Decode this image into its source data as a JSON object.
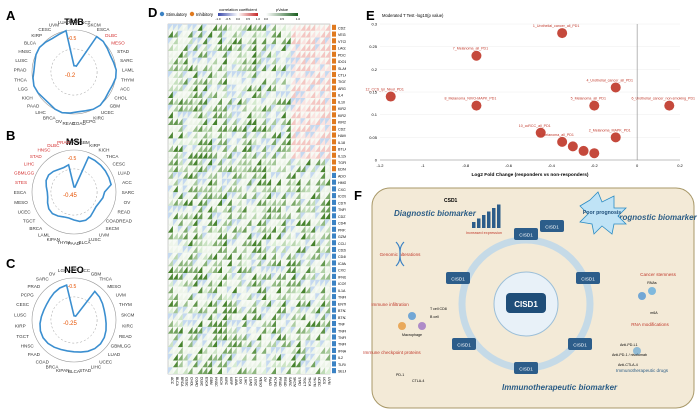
{
  "panels": {
    "A": {
      "label": "A",
      "title": "TMB",
      "center_value": "-0.2",
      "marker_value": "-0.5",
      "highlight_labels": [
        "DLBC",
        "MESO"
      ],
      "cancers": [
        "UCS",
        "TGCT",
        "SKCM",
        "ESCA",
        "DLBC",
        "MESO",
        "STAD",
        "SARC",
        "LAML",
        "THYM",
        "ACC",
        "CHOL",
        "GBM",
        "UCEC",
        "KIRC",
        "PCPG",
        "COAD",
        "READ",
        "OV",
        "BRCA",
        "LIHC",
        "PAAD",
        "KICH",
        "LGG",
        "THCA",
        "PRAD",
        "LUSC",
        "HNSC",
        "BLCA",
        "KIRP",
        "CESC",
        "UVM",
        "LUAD"
      ]
    },
    "B": {
      "label": "B",
      "title": "MSI",
      "center_value": "-0.45",
      "marker_value": "-0.5",
      "highlight_labels": [
        "PRAD",
        "DLBC",
        "HNSC",
        "STAD",
        "LIHC",
        "GBMLGG",
        "STES"
      ],
      "cancers": [
        "UCS",
        "GBM",
        "KIRP",
        "KICH",
        "THCA",
        "CESC",
        "LUAD",
        "ACC",
        "SARC",
        "OV",
        "READ",
        "COADREAD",
        "SKCM",
        "UVM",
        "LUSC",
        "BLCA",
        "PAAD",
        "THYM",
        "KIPAN",
        "LAML",
        "BRCA",
        "TGCT",
        "UCEC",
        "MESO",
        "ESCA",
        "STES",
        "GBMLGG",
        "LIHC",
        "STAD",
        "HNSC",
        "DLBC",
        "PRAD"
      ]
    },
    "C": {
      "label": "C",
      "title": "NEO",
      "center_value": "-0.25",
      "marker_value": "-0.5",
      "highlight_labels": [],
      "cancers": [
        "UCS",
        "ACC",
        "GBM",
        "THCA",
        "MESO",
        "UVM",
        "THYM",
        "SKCM",
        "KIRC",
        "READ",
        "GBMLGG",
        "LUAD",
        "UCEC",
        "LIHC",
        "STAD",
        "BLCA",
        "KIPAN",
        "BRCA",
        "COAD",
        "PAAD",
        "HNSC",
        "TGCT",
        "KIRP",
        "LUSC",
        "CESC",
        "PCPG",
        "PRAD",
        "SARC",
        "OV",
        "LGG"
      ]
    },
    "D": {
      "label": "D",
      "legend_stim": "Stimulatory",
      "legend_inhib": "Inhibitory",
      "legend_corr": "correlation coefficient",
      "legend_p": "pValue",
      "corr_ticks": [
        "-1.0",
        "-0.5",
        "0.0",
        "0.5",
        "1.0"
      ],
      "p_ticks": [
        "0.0",
        "0.5",
        "1.0"
      ],
      "genes": [
        "CD276",
        "VEGFA",
        "VTCN1",
        "LAG3",
        "PDCD1",
        "IDO1",
        "SLAMF7",
        "CTLA4",
        "TIGIT",
        "ARG1",
        "IL4",
        "IL10",
        "KIR2DL1",
        "KIR2DL3",
        "KIR2DL2",
        "CD274",
        "HAVCR2",
        "IL18",
        "BTLA",
        "IL12A",
        "TGFB1",
        "EDNRB",
        "ADORA2A",
        "HMGB1",
        "CXCL10",
        "ICOSLG",
        "CD70",
        "TNFSF9",
        "CD27",
        "CD40LG",
        "PRF1",
        "GZMA",
        "CCL5",
        "CD28",
        "CD40",
        "ICAM1",
        "CXCL10",
        "IFNG",
        "ICOS",
        "IL1A",
        "TNFRSF9",
        "ENTPD1",
        "BTN3A1",
        "BTN3A2",
        "TNF",
        "TNFRSF4",
        "TNFRSF18",
        "TNFRSF14",
        "IFNA1",
        "IL2",
        "TLR4",
        "SELP"
      ],
      "cancer_cols": [
        "ACC",
        "BLCA",
        "BRCA",
        "CESC",
        "CHOL",
        "COAD",
        "DLBC",
        "ESCA",
        "GBM",
        "HNSC",
        "KICH",
        "KIRC",
        "KIRP",
        "LAML",
        "LGG",
        "LIHC",
        "LUAD",
        "LUSC",
        "MESO",
        "OV",
        "PAAD",
        "PCPG",
        "PRAD",
        "READ",
        "SARC",
        "SKCM",
        "STAD",
        "TGCT",
        "THCA",
        "THYM",
        "UCEC",
        "UCS",
        "UVM"
      ]
    },
    "E": {
      "label": "E",
      "title": "Moderated T Test -log10(p value)",
      "xlabel": "Log2 Fold Change (responders vs non-responders)",
      "chart_data": {
        "type": "scatter",
        "title": "",
        "xlabel": "Log2 Fold Change (responders vs non-responders)",
        "ylabel": "Moderated T Test -log10(p value)",
        "xlim": [
          -1.2,
          0.2
        ],
        "ylim": [
          0,
          0.3
        ],
        "xticks": [
          "-1.2",
          "-1",
          "-0.8",
          "-0.6",
          "-0.4",
          "-0.2",
          "0",
          "0.2"
        ],
        "yticks": [
          "0",
          "0.05",
          "0.1",
          "0.15",
          "0.2",
          "0.25",
          "0.3"
        ],
        "points": [
          {
            "x": -0.35,
            "y": 0.28,
            "label": "1_Urothelial_cancer_all_PD1"
          },
          {
            "x": -0.75,
            "y": 0.23,
            "label": "7_Melanoma_all_PD1"
          },
          {
            "x": -1.15,
            "y": 0.14,
            "label": "12_CCS_Ipi_Nivol_PD1"
          },
          {
            "x": -0.1,
            "y": 0.16,
            "label": "4_Urothelial_cancer_all_PD1"
          },
          {
            "x": 0.15,
            "y": 0.12,
            "label": "6_Urothelial_cancer_non-smoking_PD1"
          },
          {
            "x": -0.75,
            "y": 0.12,
            "label": "8_Melanoma_NIVO-MAPK_PD1"
          },
          {
            "x": -0.2,
            "y": 0.12,
            "label": "5_Melanoma_all_PD1"
          },
          {
            "x": -0.45,
            "y": 0.06,
            "label": "10_ccRCC_all_PD1"
          },
          {
            "x": -0.1,
            "y": 0.05,
            "label": "2_Melanoma_MAPK_PD1"
          },
          {
            "x": -0.35,
            "y": 0.04,
            "label": "3_Melanoma_all_PD1"
          },
          {
            "x": -0.3,
            "y": 0.03,
            "label": ""
          },
          {
            "x": -0.25,
            "y": 0.02,
            "label": ""
          },
          {
            "x": -0.2,
            "y": 0.015,
            "label": ""
          }
        ]
      }
    },
    "F": {
      "label": "F",
      "center": "CISD1",
      "diagnostic": "Diagnostic biomarker",
      "prognostic": "Prognostic biomarker",
      "immuno": "Immunotherapeutic biomarker",
      "poor": "Poor prognosis",
      "increased": "Increased expression",
      "cisd1_top": "CSD1",
      "nodes": [
        "CISD1",
        "CISD1",
        "CISD1",
        "CISD1",
        "CISD1",
        "CISD1",
        "CISD1"
      ],
      "texts": {
        "genomic": "Genomic alterations",
        "immune_inf": "Immune infiltration",
        "checkpoint": "Immune checkpoint proteins",
        "cancer_stem": "Cancer stemness",
        "rna_mod": "RNA modifications",
        "immuno_drugs": "Immunotherapeutic drugs",
        "macrophage": "Macrophage",
        "bcell": "B cell",
        "tcell": "T cell CD8",
        "dc": "DC",
        "mrna": "mRNA",
        "rnas": "RNAs",
        "mrnasite": "m6A",
        "tmb": "TMB",
        "msi": "MSI",
        "pd1": "PD-1",
        "ctla4": "CTLA-4",
        "antipd1": "Anti-PD-1 / nivolumab",
        "antipdl1": "Anti-PD-L1",
        "anti_ctla4": "Anti-CTLA-4",
        "pdl1": "PD-L1"
      }
    }
  },
  "colors": {
    "green": "#2e7d32",
    "red": "#c62828",
    "blue": "#1f77b4",
    "orange": "#e65100",
    "bg_F": "#f3ead7"
  }
}
